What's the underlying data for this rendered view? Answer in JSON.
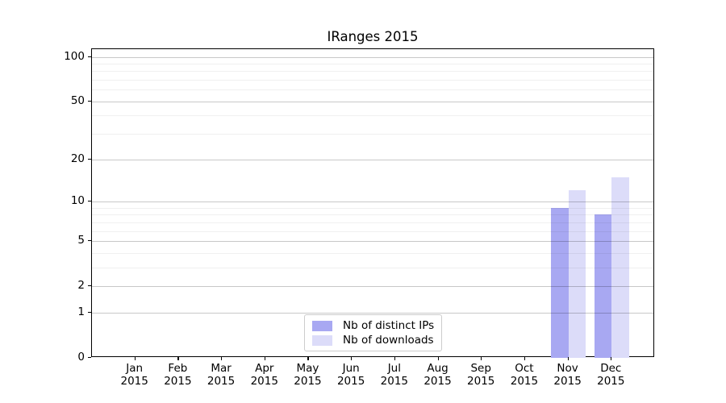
{
  "chart_data": {
    "type": "bar",
    "title": "IRanges 2015",
    "xlabel": "",
    "ylabel": "",
    "months": [
      "Jan",
      "Feb",
      "Mar",
      "Apr",
      "May",
      "Jun",
      "Jul",
      "Aug",
      "Sep",
      "Oct",
      "Nov",
      "Dec"
    ],
    "year": "2015",
    "series": [
      {
        "name": "Nb of distinct IPs",
        "color": "#a8a8f2",
        "values": [
          0,
          0,
          0,
          0,
          0,
          0,
          0,
          0,
          0,
          0,
          9,
          8
        ]
      },
      {
        "name": "Nb of downloads",
        "color": "#dcdcf9",
        "values": [
          0,
          0,
          0,
          0,
          0,
          0,
          0,
          0,
          0,
          0,
          12,
          15
        ]
      }
    ],
    "y_scale": "log1p",
    "y_max": 112.6,
    "y_ticks_major": [
      0,
      1,
      2,
      5,
      10,
      20,
      50,
      100
    ],
    "y_ticks_minor": [
      3,
      4,
      6,
      7,
      8,
      9,
      30,
      40,
      60,
      70,
      80,
      90
    ],
    "grid": true,
    "legend_position": "lower center",
    "colors": {
      "grid_major": "#c9c9c9",
      "grid_minor": "#f0f0f0",
      "spine": "#000000",
      "background": "#ffffff"
    }
  }
}
